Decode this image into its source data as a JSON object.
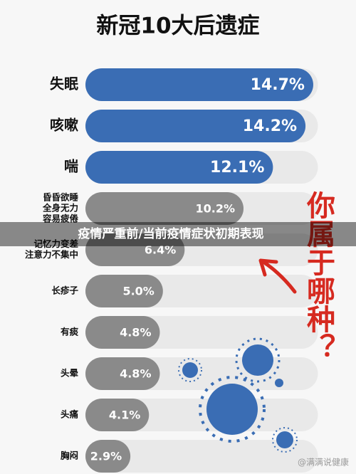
{
  "chart_data": {
    "type": "bar",
    "orientation": "horizontal",
    "title": "新冠10大后遗症",
    "caption": "疫情严重前/当前疫情症状初期表现",
    "side_text": "你属于哪种？",
    "watermark": "@满满说健康",
    "categories": [
      [
        "失眠"
      ],
      [
        "咳嗽"
      ],
      [
        "喘"
      ],
      [
        "昏昏欲睡",
        "全身无力",
        "容易疲倦"
      ],
      [
        "记忆力变差",
        "注意力不集中"
      ],
      [
        "长疹子"
      ],
      [
        "有痰"
      ],
      [
        "头晕"
      ],
      [
        "头痛"
      ],
      [
        "胸闷"
      ]
    ],
    "values": [
      14.7,
      14.2,
      12.1,
      10.2,
      6.4,
      5.0,
      4.8,
      4.8,
      4.1,
      2.9
    ],
    "value_labels": [
      "14.7%",
      "14.2%",
      "12.1%",
      "10.2%",
      "6.4%",
      "5.0%",
      "4.8%",
      "4.8%",
      "4.1%",
      "2.9%"
    ],
    "colors": [
      "#3a6db4",
      "#3a6db4",
      "#3a6db4",
      "#8a8a8a",
      "#8a8a8a",
      "#8a8a8a",
      "#8a8a8a",
      "#8a8a8a",
      "#8a8a8a",
      "#8a8a8a"
    ],
    "xlim": [
      0,
      15
    ]
  }
}
